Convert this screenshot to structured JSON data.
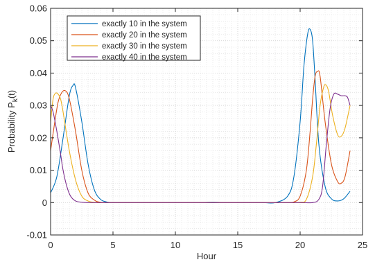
{
  "chart_data": {
    "type": "line",
    "title": "",
    "xlabel": "Hour",
    "ylabel_main": "Probability P",
    "ylabel_sub": "k",
    "ylabel_tail": "(t)",
    "xlim": [
      0,
      25
    ],
    "ylim": [
      -0.01,
      0.06
    ],
    "xticks": [
      0,
      5,
      10,
      15,
      20,
      25
    ],
    "xtick_labels": [
      "0",
      "5",
      "10",
      "15",
      "20",
      "25"
    ],
    "yticks": [
      -0.01,
      0,
      0.01,
      0.02,
      0.03,
      0.04,
      0.05,
      0.06
    ],
    "ytick_labels": [
      "-0.01",
      "0",
      "0.01",
      "0.02",
      "0.03",
      "0.04",
      "0.05",
      "0.06"
    ],
    "grid": true,
    "minor_grid": true,
    "legend_position": "top-left",
    "series": [
      {
        "name": "exactly 10 in the system",
        "color": "#0072BD",
        "x": [
          0,
          0.5,
          1,
          1.5,
          1.8,
          2,
          2.5,
          3,
          3.5,
          4,
          4.5,
          5,
          6,
          7,
          8,
          9,
          10,
          11,
          12,
          13,
          14,
          15,
          16,
          17,
          18,
          19,
          19.5,
          20,
          20.3,
          20.6,
          20.8,
          21,
          21.2,
          21.5,
          22,
          22.5,
          23,
          23.5,
          24
        ],
        "y": [
          0.003,
          0.008,
          0.02,
          0.033,
          0.0362,
          0.0355,
          0.025,
          0.012,
          0.004,
          0.001,
          0.0002,
          0,
          0,
          0,
          0,
          0,
          0,
          0,
          0,
          0.0001,
          0,
          0,
          0,
          0,
          0,
          0.002,
          0.008,
          0.025,
          0.042,
          0.052,
          0.0535,
          0.05,
          0.038,
          0.018,
          0.005,
          0.0012,
          0.0005,
          0.0012,
          0.0035
        ]
      },
      {
        "name": "exactly 20 in the system",
        "color": "#D95319",
        "x": [
          0,
          0.3,
          0.6,
          0.9,
          1.2,
          1.5,
          2,
          2.5,
          3,
          3.5,
          4,
          5,
          6,
          8,
          10,
          12,
          14,
          16,
          18,
          19,
          19.5,
          20,
          20.5,
          20.8,
          21,
          21.2,
          21.4,
          21.6,
          22,
          22.5,
          23,
          23.3,
          23.6,
          24
        ],
        "y": [
          0.016,
          0.024,
          0.031,
          0.034,
          0.0345,
          0.032,
          0.022,
          0.01,
          0.003,
          0.0008,
          0.0001,
          0,
          0,
          0,
          0,
          0,
          0,
          0,
          0,
          0,
          0.0002,
          0.002,
          0.01,
          0.022,
          0.032,
          0.039,
          0.0405,
          0.039,
          0.025,
          0.012,
          0.0065,
          0.006,
          0.008,
          0.016
        ]
      },
      {
        "name": "exactly 30 in the system",
        "color": "#EDB120",
        "x": [
          0,
          0.2,
          0.4,
          0.6,
          0.8,
          1,
          1.5,
          2,
          2.5,
          3,
          3.5,
          4,
          5,
          6,
          8,
          10,
          12,
          14,
          16,
          18,
          19,
          20,
          20.5,
          21,
          21.3,
          21.6,
          21.9,
          22.1,
          22.3,
          22.6,
          23,
          23.3,
          23.6,
          24
        ],
        "y": [
          0.025,
          0.032,
          0.0338,
          0.0335,
          0.032,
          0.028,
          0.016,
          0.007,
          0.002,
          0.0005,
          0.0001,
          0,
          0,
          0,
          0,
          0,
          0,
          0,
          0,
          0,
          0,
          0.0001,
          0.001,
          0.008,
          0.018,
          0.03,
          0.0358,
          0.0362,
          0.034,
          0.027,
          0.021,
          0.0205,
          0.023,
          0.03
        ]
      },
      {
        "name": "exactly 40 in the system",
        "color": "#7E2F8E",
        "x": [
          0,
          0.2,
          0.5,
          0.8,
          1,
          1.3,
          1.6,
          2,
          2.5,
          3,
          4,
          5,
          6,
          8,
          10,
          12,
          14,
          16,
          18,
          20,
          21,
          21.5,
          21.8,
          22.1,
          22.4,
          22.7,
          23,
          23.3,
          23.6,
          23.8,
          24
        ],
        "y": [
          0.03,
          0.028,
          0.022,
          0.015,
          0.01,
          0.005,
          0.002,
          0.0005,
          0.0001,
          0,
          0,
          0,
          0,
          0,
          0,
          0,
          0,
          0,
          0,
          0,
          0,
          0.001,
          0.005,
          0.018,
          0.029,
          0.0335,
          0.0335,
          0.033,
          0.033,
          0.0325,
          0.03
        ]
      }
    ]
  }
}
